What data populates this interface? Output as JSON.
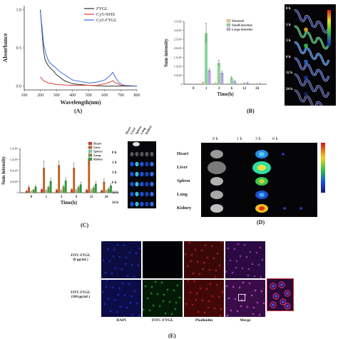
{
  "panel_labels": {
    "A": "(A)",
    "B": "(B)",
    "C": "(C)",
    "D": "(D)",
    "E": "(E)"
  },
  "chart_data": [
    {
      "id": "A",
      "type": "line",
      "xlabel": "Wavelength(nm)",
      "ylabel": "Absorbance",
      "xlim": [
        100,
        800
      ],
      "ylim": [
        -0.05,
        1.05
      ],
      "xticks": [
        "100",
        "200",
        "300",
        "400",
        "500",
        "600",
        "700",
        "800"
      ],
      "yticks": [
        "0.0",
        "0.5",
        "1.0"
      ],
      "legend_position": "top-right",
      "series": [
        {
          "name": "FYGL",
          "color": "#333333",
          "x": [
            200,
            210,
            220,
            230,
            245,
            260,
            280,
            300,
            350,
            400,
            500,
            600,
            700,
            800
          ],
          "y": [
            1.0,
            0.72,
            0.46,
            0.34,
            0.28,
            0.24,
            0.2,
            0.15,
            0.07,
            0.03,
            0.01,
            0.0,
            0.0,
            0.0
          ]
        },
        {
          "name": "Cy5-NHS",
          "color": "#e03c3c",
          "x": [
            200,
            220,
            250,
            280,
            300,
            400,
            500,
            550,
            600,
            630,
            650,
            670,
            700,
            800
          ],
          "y": [
            0.12,
            0.07,
            0.04,
            0.03,
            0.02,
            0.01,
            0.01,
            0.01,
            0.03,
            0.05,
            0.07,
            0.04,
            0.01,
            0.0
          ]
        },
        {
          "name": "Cy5-FYGL",
          "color": "#3a6fd8",
          "x": [
            200,
            210,
            220,
            235,
            250,
            270,
            290,
            320,
            400,
            500,
            550,
            600,
            630,
            650,
            665,
            690,
            720,
            800
          ],
          "y": [
            0.98,
            0.78,
            0.56,
            0.42,
            0.33,
            0.28,
            0.25,
            0.19,
            0.08,
            0.04,
            0.05,
            0.08,
            0.13,
            0.18,
            0.12,
            0.04,
            0.01,
            0.0
          ]
        }
      ]
    },
    {
      "id": "B",
      "type": "bar",
      "xlabel": "Time(h)",
      "ylabel": "Sum intensity",
      "ylim": [
        0,
        3500000
      ],
      "yticks": [
        "0",
        "5.0x10⁵",
        "1.0x10⁶",
        "1.5x10⁶",
        "2.0x10⁶",
        "2.5x10⁶",
        "3.0x10⁶",
        "3.5x10⁶"
      ],
      "categories": [
        "0",
        "1",
        "3",
        "6",
        "12",
        "24"
      ],
      "legend_position": "top-right",
      "series": [
        {
          "name": "Stomach",
          "color": "#f2c48a",
          "values": [
            0,
            90000,
            60000,
            30000,
            20000,
            10000
          ],
          "errors": [
            0,
            30000,
            20000,
            10000,
            8000,
            5000
          ]
        },
        {
          "name": "Small intestine",
          "color": "#8cd49a",
          "values": [
            0,
            2850000,
            1180000,
            350000,
            60000,
            30000
          ],
          "errors": [
            0,
            550000,
            160000,
            80000,
            20000,
            10000
          ]
        },
        {
          "name": "Large intestine",
          "color": "#b7a5dd",
          "values": [
            0,
            780000,
            640000,
            170000,
            80000,
            40000
          ],
          "errors": [
            0,
            110000,
            90000,
            40000,
            20000,
            10000
          ]
        }
      ]
    },
    {
      "id": "C",
      "type": "bar",
      "xlabel": "Time(h)",
      "ylabel": "Sum intensity",
      "ylim": [
        0,
        1600000
      ],
      "yticks": [
        "0",
        "4.0x10⁵",
        "8.0x10⁵",
        "1.2x10⁶",
        "1.6x10⁶"
      ],
      "categories": [
        "0",
        "1",
        "3",
        "6",
        "12",
        "24"
      ],
      "legend_position": "top-right",
      "series": [
        {
          "name": "Heart",
          "color": "#cc3322",
          "values": [
            60000,
            120000,
            100000,
            120000,
            100000,
            80000
          ],
          "errors": [
            20000,
            30000,
            30000,
            30000,
            30000,
            20000
          ]
        },
        {
          "name": "Liver",
          "color": "#c0601e",
          "values": [
            200000,
            900000,
            1000000,
            900000,
            1250000,
            400000
          ],
          "errors": [
            60000,
            240000,
            140000,
            180000,
            280000,
            100000
          ]
        },
        {
          "name": "Spleen",
          "color": "#7ec8a8",
          "values": [
            40000,
            80000,
            80000,
            90000,
            90000,
            70000
          ],
          "errors": [
            15000,
            25000,
            25000,
            25000,
            25000,
            20000
          ]
        },
        {
          "name": "Lung",
          "color": "#7a8a38",
          "values": [
            100000,
            200000,
            220000,
            200000,
            180000,
            140000
          ],
          "errors": [
            30000,
            50000,
            50000,
            50000,
            50000,
            40000
          ]
        },
        {
          "name": "Kidney",
          "color": "#2a9a3c",
          "values": [
            220000,
            420000,
            440000,
            300000,
            320000,
            260000
          ],
          "errors": [
            60000,
            100000,
            90000,
            80000,
            80000,
            70000
          ]
        }
      ]
    }
  ],
  "panelB_images": {
    "times": [
      "0 h",
      "1 h",
      "3 h",
      "6 h",
      "12 h",
      "24 h"
    ]
  },
  "panelC_images": {
    "organs": [
      "Heart",
      "Liver",
      "Spleen",
      "Lung",
      "Kidney"
    ],
    "times": [
      "0 h",
      "1 h",
      "3 h",
      "6 h",
      "12 h",
      "24 h"
    ]
  },
  "panelD": {
    "organs": [
      "Heart",
      "Liver",
      "Spleen",
      "Lung",
      "Kidney"
    ],
    "times": [
      "0 h",
      "1 h",
      "3 h",
      "6 h"
    ]
  },
  "panelE": {
    "rows": [
      "FITC-FYGL\n(0 μg/mL)",
      "FITC-FYGL\n(100 μg/mL)"
    ],
    "columns": [
      "DAPI",
      "FITC-FYGL",
      "Phalloidin",
      "Merge"
    ]
  },
  "colors": {
    "line_black": "#333333",
    "line_red": "#e03c3c",
    "line_blue": "#3a6fd8"
  }
}
